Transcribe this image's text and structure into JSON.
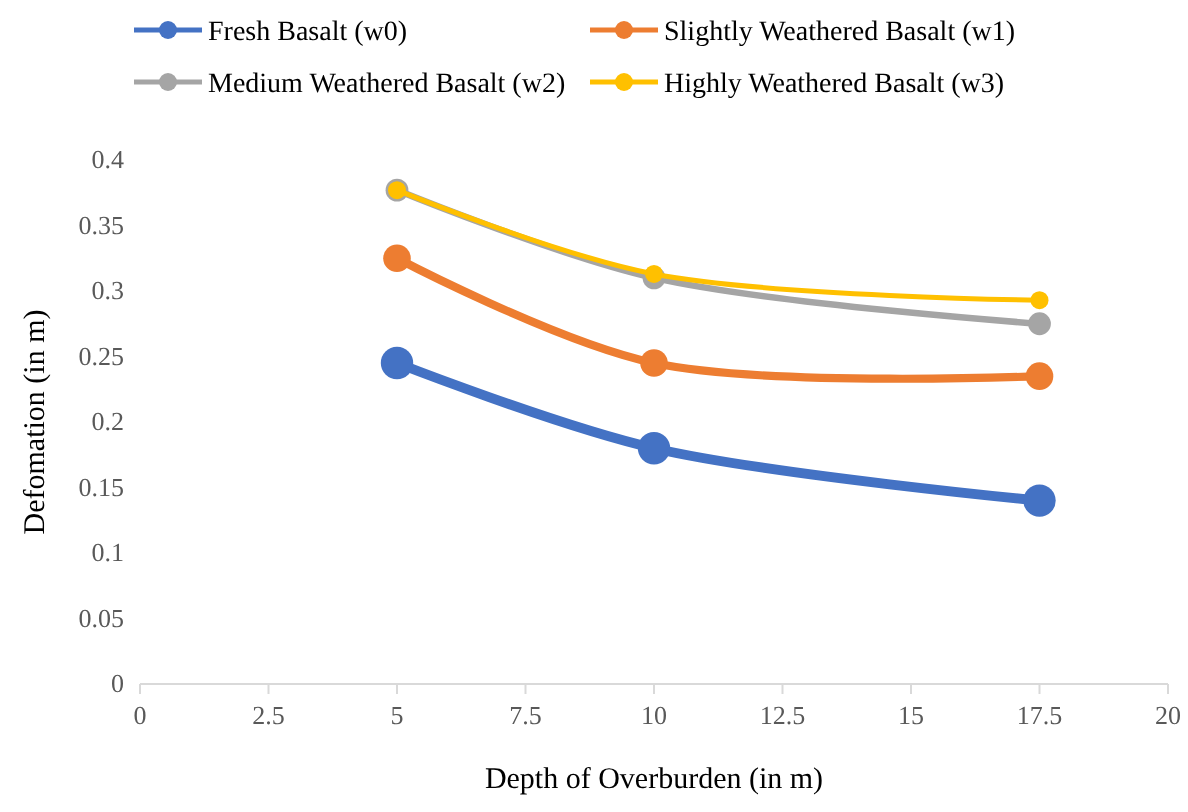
{
  "chart_data": {
    "type": "line",
    "xlabel": "Depth of Overburden (in m)",
    "ylabel": "Defomation (in m)",
    "x": [
      5,
      10,
      17.5
    ],
    "series": [
      {
        "name": "Fresh Basalt (w0)",
        "color": "#4472c4",
        "values": [
          0.245,
          0.18,
          0.14
        ]
      },
      {
        "name": "Slightly Weathered Basalt (w1)",
        "color": "#ed7d31",
        "values": [
          0.325,
          0.245,
          0.235
        ]
      },
      {
        "name": "Medium Weathered Basalt (w2)",
        "color": "#a5a5a5",
        "values": [
          0.377,
          0.31,
          0.275
        ]
      },
      {
        "name": "Highly Weathered Basalt (w3)",
        "color": "#ffc000",
        "values": [
          0.377,
          0.313,
          0.293
        ]
      }
    ],
    "xlim": [
      0,
      20
    ],
    "xticks": [
      0,
      2.5,
      5,
      7.5,
      10,
      12.5,
      15,
      17.5,
      20
    ],
    "ylim": [
      0,
      0.4
    ],
    "yticks": [
      0,
      0.05,
      0.1,
      0.15,
      0.2,
      0.25,
      0.3,
      0.35,
      0.4
    ],
    "grid": false,
    "legend": "top",
    "marker": "circle",
    "line_style": "solid"
  }
}
